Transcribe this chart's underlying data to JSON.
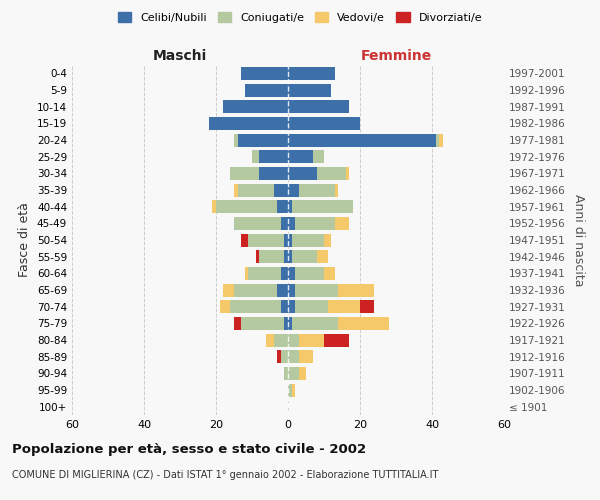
{
  "age_groups": [
    "100+",
    "95-99",
    "90-94",
    "85-89",
    "80-84",
    "75-79",
    "70-74",
    "65-69",
    "60-64",
    "55-59",
    "50-54",
    "45-49",
    "40-44",
    "35-39",
    "30-34",
    "25-29",
    "20-24",
    "15-19",
    "10-14",
    "5-9",
    "0-4"
  ],
  "birth_years": [
    "≤ 1901",
    "1902-1906",
    "1907-1911",
    "1912-1916",
    "1917-1921",
    "1922-1926",
    "1927-1931",
    "1932-1936",
    "1937-1941",
    "1942-1946",
    "1947-1951",
    "1952-1956",
    "1957-1961",
    "1962-1966",
    "1967-1971",
    "1972-1976",
    "1977-1981",
    "1982-1986",
    "1987-1991",
    "1992-1996",
    "1997-2001"
  ],
  "males": {
    "celibi": [
      0,
      0,
      0,
      0,
      0,
      1,
      2,
      3,
      2,
      1,
      1,
      2,
      3,
      4,
      8,
      8,
      14,
      22,
      18,
      12,
      13
    ],
    "coniugati": [
      0,
      0,
      1,
      2,
      4,
      12,
      14,
      12,
      9,
      7,
      10,
      13,
      17,
      10,
      8,
      2,
      1,
      0,
      0,
      0,
      0
    ],
    "vedovi": [
      0,
      0,
      0,
      0,
      2,
      0,
      3,
      3,
      1,
      0,
      0,
      0,
      1,
      1,
      0,
      0,
      0,
      0,
      0,
      0,
      0
    ],
    "divorziati": [
      0,
      0,
      0,
      1,
      0,
      2,
      0,
      0,
      0,
      1,
      2,
      0,
      0,
      0,
      0,
      0,
      0,
      0,
      0,
      0,
      0
    ]
  },
  "females": {
    "nubili": [
      0,
      0,
      0,
      0,
      0,
      1,
      2,
      2,
      2,
      1,
      1,
      2,
      1,
      3,
      8,
      7,
      41,
      20,
      17,
      12,
      13
    ],
    "coniugate": [
      0,
      1,
      3,
      3,
      3,
      13,
      9,
      12,
      8,
      7,
      9,
      11,
      17,
      10,
      8,
      3,
      1,
      0,
      0,
      0,
      0
    ],
    "vedove": [
      0,
      1,
      2,
      4,
      7,
      14,
      9,
      10,
      3,
      3,
      2,
      4,
      0,
      1,
      1,
      0,
      1,
      0,
      0,
      0,
      0
    ],
    "divorziate": [
      0,
      0,
      0,
      0,
      7,
      0,
      4,
      0,
      0,
      0,
      0,
      0,
      0,
      0,
      0,
      0,
      0,
      0,
      0,
      0,
      0
    ]
  },
  "colors": {
    "celibi": "#3d6fa8",
    "coniugati": "#b5c9a0",
    "vedovi": "#f5c96a",
    "divorziati": "#cc2222"
  },
  "title": "Popolazione per età, sesso e stato civile - 2002",
  "subtitle": "COMUNE DI MIGLIERINA (CZ) - Dati ISTAT 1° gennaio 2002 - Elaborazione TUTTITALIA.IT",
  "xlabel_left": "Maschi",
  "xlabel_right": "Femmine",
  "ylabel_left": "Fasce di età",
  "ylabel_right": "Anni di nascita",
  "xlim": 60,
  "bg_color": "#f8f8f8",
  "grid_color": "#cccccc"
}
